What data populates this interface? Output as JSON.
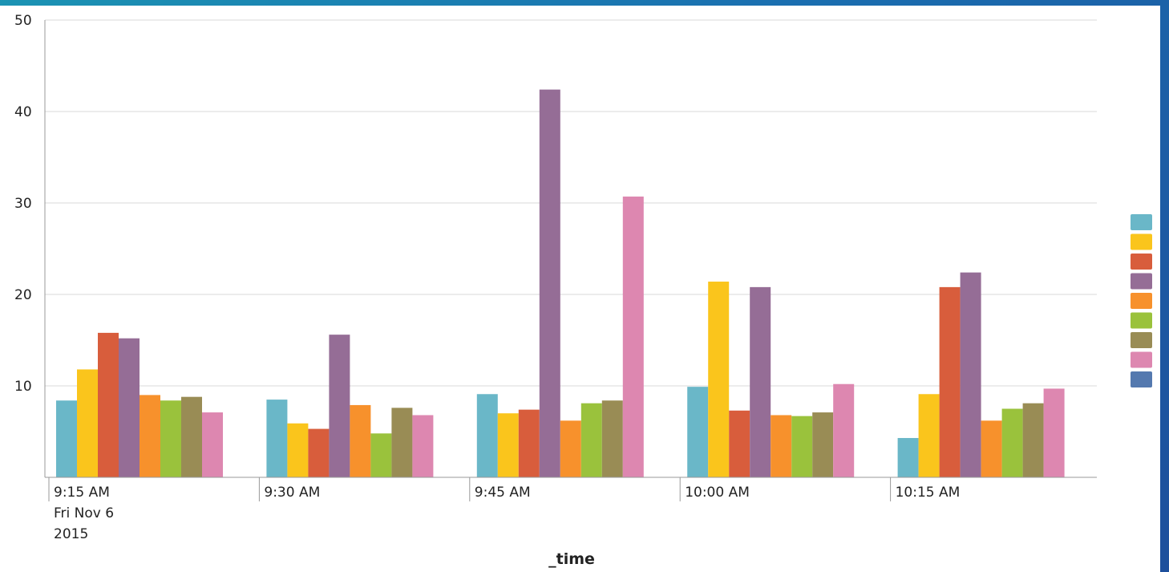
{
  "chart_data": {
    "type": "bar",
    "xlabel": "_time",
    "ylabel": "",
    "ylim": [
      0,
      50
    ],
    "yticks": [
      10,
      20,
      30,
      40,
      50
    ],
    "categories": [
      "9:15 AM",
      "9:30 AM",
      "9:45 AM",
      "10:00 AM",
      "10:15 AM"
    ],
    "first_category_date": [
      "Fri Nov 6",
      "2015"
    ],
    "grid": true,
    "legend_position": "right",
    "series": [
      {
        "color": "#6ab7c8",
        "values": [
          8.4,
          8.5,
          9.1,
          9.9,
          4.3
        ]
      },
      {
        "color": "#fac51c",
        "values": [
          11.8,
          5.9,
          7.0,
          21.4,
          9.1
        ]
      },
      {
        "color": "#d85d3c",
        "values": [
          15.8,
          5.3,
          7.4,
          7.3,
          20.8
        ]
      },
      {
        "color": "#956d96",
        "values": [
          15.2,
          15.6,
          42.4,
          20.8,
          22.4
        ]
      },
      {
        "color": "#f7912c",
        "values": [
          9.0,
          7.9,
          6.2,
          6.8,
          6.2
        ]
      },
      {
        "color": "#9ac23c",
        "values": [
          8.4,
          4.8,
          8.1,
          6.7,
          7.5
        ]
      },
      {
        "color": "#998c55",
        "values": [
          8.8,
          7.6,
          8.4,
          7.1,
          8.1
        ]
      },
      {
        "color": "#dd87b0",
        "values": [
          7.1,
          6.8,
          30.7,
          10.2,
          9.7
        ]
      },
      {
        "color": "#5479af",
        "values": [
          0,
          0,
          0,
          0,
          0
        ]
      }
    ]
  }
}
